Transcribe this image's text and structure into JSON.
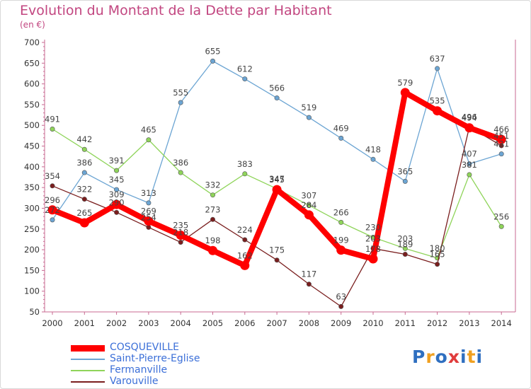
{
  "title": "Evolution du Montant de la Dette par Habitant",
  "subtitle": "(en €)",
  "logo": {
    "text": "Proxiti",
    "letter_colors": [
      "#2f6fc0",
      "#f0a020",
      "#2f6fc0",
      "#e03c3c",
      "#2f6fc0",
      "#f0a020",
      "#2f6fc0"
    ]
  },
  "chart_data": {
    "type": "line",
    "x": [
      2000,
      2001,
      2002,
      2003,
      2004,
      2005,
      2006,
      2007,
      2008,
      2009,
      2010,
      2011,
      2012,
      2013,
      2014
    ],
    "ylim": [
      50,
      700
    ],
    "yticks": [
      50,
      100,
      150,
      200,
      250,
      300,
      350,
      400,
      450,
      500,
      550,
      600,
      650,
      700
    ],
    "grid": false,
    "legend": "bottom-left",
    "series": [
      {
        "name": "COSQUEVILLE",
        "color": "#ff0000",
        "values": [
          296,
          265,
          309,
          269,
          235,
          198,
          162,
          345,
          284,
          199,
          178,
          579,
          535,
          494,
          466
        ],
        "labels": [
          "296",
          "265",
          "309",
          "269",
          "235",
          "198",
          "162",
          "345",
          "284",
          "199",
          "178",
          "579",
          "535",
          "494",
          "466"
        ]
      },
      {
        "name": "Saint-Pierre-Eglise",
        "color": "#6ca5d3",
        "values": [
          272,
          386,
          345,
          313,
          555,
          655,
          612,
          566,
          519,
          469,
          418,
          365,
          637,
          407,
          431
        ],
        "labels": [
          "272",
          "386",
          "345",
          "313",
          "555",
          "655",
          "612",
          "566",
          "519",
          "469",
          "418",
          "365",
          "637",
          "407",
          "431"
        ]
      },
      {
        "name": "Fermanville",
        "color": "#8fd45a",
        "values": [
          491,
          442,
          391,
          465,
          386,
          332,
          383,
          347,
          307,
          266,
          230,
          203,
          180,
          381,
          256
        ],
        "labels": [
          "491",
          "442",
          "391",
          "465",
          "386",
          "332",
          "383",
          "347",
          "307",
          "266",
          "230",
          "203",
          "180",
          "381",
          "256"
        ]
      },
      {
        "name": "Varouville",
        "color": "#7a1e1e",
        "values": [
          354,
          322,
          290,
          254,
          218,
          273,
          224,
          175,
          117,
          63,
          203,
          189,
          165,
          496,
          451
        ],
        "labels": [
          "354",
          "322",
          "290",
          "254",
          "218",
          "273",
          "224",
          "175",
          "117",
          "63",
          "203",
          "189",
          "165",
          "496",
          "451"
        ]
      }
    ]
  }
}
